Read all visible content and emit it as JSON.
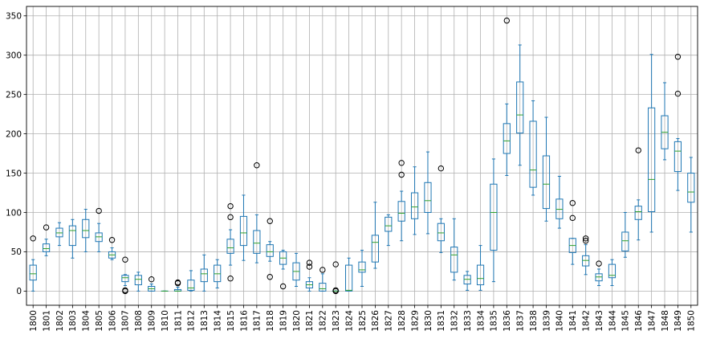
{
  "chart_data": {
    "type": "boxplot",
    "categories": [
      "1800",
      "1801",
      "1802",
      "1803",
      "1804",
      "1805",
      "1806",
      "1807",
      "1808",
      "1809",
      "1810",
      "1811",
      "1812",
      "1813",
      "1814",
      "1815",
      "1816",
      "1817",
      "1818",
      "1819",
      "1820",
      "1821",
      "1822",
      "1823",
      "1824",
      "1825",
      "1826",
      "1827",
      "1828",
      "1829",
      "1830",
      "1831",
      "1832",
      "1833",
      "1834",
      "1835",
      "1836",
      "1837",
      "1838",
      "1839",
      "1840",
      "1841",
      "1842",
      "1843",
      "1844",
      "1845",
      "1846",
      "1847",
      "1848",
      "1849",
      "1850"
    ],
    "boxes": [
      {
        "whislo": 0,
        "q1": 14,
        "med": 22,
        "q3": 33,
        "whishi": 40,
        "fliers": [
          67
        ]
      },
      {
        "whislo": 45,
        "q1": 50,
        "med": 54,
        "q3": 60,
        "whishi": 66,
        "fliers": [
          81
        ]
      },
      {
        "whislo": 58,
        "q1": 69,
        "med": 74,
        "q3": 80,
        "whishi": 87,
        "fliers": []
      },
      {
        "whislo": 42,
        "q1": 58,
        "med": 77,
        "q3": 83,
        "whishi": 91,
        "fliers": []
      },
      {
        "whislo": 50,
        "q1": 68,
        "med": 77,
        "q3": 91,
        "whishi": 104,
        "fliers": []
      },
      {
        "whislo": 50,
        "q1": 63,
        "med": 69,
        "q3": 74,
        "whishi": 86,
        "fliers": [
          102
        ]
      },
      {
        "whislo": 40,
        "q1": 42,
        "med": 46,
        "q3": 50,
        "whishi": 55,
        "fliers": [
          65
        ]
      },
      {
        "whislo": 7,
        "q1": 12,
        "med": 17,
        "q3": 20,
        "whishi": 21,
        "fliers": [
          40,
          0,
          1
        ]
      },
      {
        "whislo": 0,
        "q1": 8,
        "med": 15,
        "q3": 20,
        "whishi": 24,
        "fliers": []
      },
      {
        "whislo": 0,
        "q1": 0,
        "med": 3,
        "q3": 6,
        "whishi": 9,
        "fliers": [
          15
        ]
      },
      {
        "whislo": 0,
        "q1": 0,
        "med": 0,
        "q3": 0,
        "whishi": 0,
        "fliers": []
      },
      {
        "whislo": 0,
        "q1": 0,
        "med": 0,
        "q3": 2,
        "whishi": 5,
        "fliers": [
          11,
          10
        ]
      },
      {
        "whislo": 0,
        "q1": 1,
        "med": 4,
        "q3": 14,
        "whishi": 26,
        "fliers": []
      },
      {
        "whislo": 0,
        "q1": 12,
        "med": 22,
        "q3": 28,
        "whishi": 46,
        "fliers": []
      },
      {
        "whislo": 4,
        "q1": 12,
        "med": 22,
        "q3": 33,
        "whishi": 40,
        "fliers": []
      },
      {
        "whislo": 33,
        "q1": 48,
        "med": 55,
        "q3": 66,
        "whishi": 78,
        "fliers": [
          108,
          94,
          16
        ]
      },
      {
        "whislo": 39,
        "q1": 58,
        "med": 74,
        "q3": 95,
        "whishi": 122,
        "fliers": []
      },
      {
        "whislo": 36,
        "q1": 48,
        "med": 61,
        "q3": 77,
        "whishi": 97,
        "fliers": [
          160
        ]
      },
      {
        "whislo": 38,
        "q1": 44,
        "med": 50,
        "q3": 59,
        "whishi": 63,
        "fliers": [
          89,
          18
        ]
      },
      {
        "whislo": 28,
        "q1": 34,
        "med": 42,
        "q3": 50,
        "whishi": 52,
        "fliers": [
          6
        ]
      },
      {
        "whislo": 6,
        "q1": 14,
        "med": 25,
        "q3": 36,
        "whishi": 48,
        "fliers": []
      },
      {
        "whislo": 0,
        "q1": 4,
        "med": 8,
        "q3": 12,
        "whishi": 17,
        "fliers": [
          36,
          31
        ]
      },
      {
        "whislo": 0,
        "q1": 0,
        "med": 3,
        "q3": 10,
        "whishi": 22,
        "fliers": [
          27
        ]
      },
      {
        "whislo": 0,
        "q1": 0,
        "med": 0,
        "q3": 0,
        "whishi": 0,
        "fliers": [
          34,
          1,
          0
        ]
      },
      {
        "whislo": 0,
        "q1": 0,
        "med": 1,
        "q3": 33,
        "whishi": 42,
        "fliers": []
      },
      {
        "whislo": 6,
        "q1": 24,
        "med": 27,
        "q3": 37,
        "whishi": 52,
        "fliers": []
      },
      {
        "whislo": 29,
        "q1": 37,
        "med": 62,
        "q3": 71,
        "whishi": 113,
        "fliers": []
      },
      {
        "whislo": 58,
        "q1": 76,
        "med": 83,
        "q3": 94,
        "whishi": 97,
        "fliers": []
      },
      {
        "whislo": 64,
        "q1": 89,
        "med": 99,
        "q3": 114,
        "whishi": 127,
        "fliers": [
          163,
          148
        ]
      },
      {
        "whislo": 72,
        "q1": 92,
        "med": 107,
        "q3": 125,
        "whishi": 158,
        "fliers": []
      },
      {
        "whislo": 73,
        "q1": 100,
        "med": 115,
        "q3": 138,
        "whishi": 177,
        "fliers": []
      },
      {
        "whislo": 49,
        "q1": 64,
        "med": 74,
        "q3": 86,
        "whishi": 92,
        "fliers": [
          156
        ]
      },
      {
        "whislo": 14,
        "q1": 24,
        "med": 46,
        "q3": 56,
        "whishi": 92,
        "fliers": []
      },
      {
        "whislo": 1,
        "q1": 9,
        "med": 15,
        "q3": 20,
        "whishi": 25,
        "fliers": []
      },
      {
        "whislo": 1,
        "q1": 8,
        "med": 16,
        "q3": 33,
        "whishi": 58,
        "fliers": []
      },
      {
        "whislo": 12,
        "q1": 52,
        "med": 100,
        "q3": 136,
        "whishi": 168,
        "fliers": []
      },
      {
        "whislo": 147,
        "q1": 175,
        "med": 191,
        "q3": 213,
        "whishi": 238,
        "fliers": [
          344
        ]
      },
      {
        "whislo": 160,
        "q1": 201,
        "med": 224,
        "q3": 266,
        "whishi": 313,
        "fliers": []
      },
      {
        "whislo": 122,
        "q1": 132,
        "med": 154,
        "q3": 216,
        "whishi": 242,
        "fliers": []
      },
      {
        "whislo": 89,
        "q1": 105,
        "med": 136,
        "q3": 172,
        "whishi": 221,
        "fliers": []
      },
      {
        "whislo": 80,
        "q1": 92,
        "med": 104,
        "q3": 117,
        "whishi": 146,
        "fliers": []
      },
      {
        "whislo": 34,
        "q1": 49,
        "med": 58,
        "q3": 67,
        "whishi": 67,
        "fliers": [
          112,
          93
        ]
      },
      {
        "whislo": 21,
        "q1": 32,
        "med": 39,
        "q3": 45,
        "whishi": 59,
        "fliers": [
          67,
          64
        ]
      },
      {
        "whislo": 7,
        "q1": 13,
        "med": 18,
        "q3": 22,
        "whishi": 28,
        "fliers": [
          35
        ]
      },
      {
        "whislo": 7,
        "q1": 17,
        "med": 20,
        "q3": 34,
        "whishi": 40,
        "fliers": []
      },
      {
        "whislo": 43,
        "q1": 51,
        "med": 64,
        "q3": 75,
        "whishi": 100,
        "fliers": []
      },
      {
        "whislo": 65,
        "q1": 91,
        "med": 101,
        "q3": 108,
        "whishi": 116,
        "fliers": [
          179
        ]
      },
      {
        "whislo": 75,
        "q1": 101,
        "med": 142,
        "q3": 233,
        "whishi": 301,
        "fliers": []
      },
      {
        "whislo": 167,
        "q1": 181,
        "med": 202,
        "q3": 223,
        "whishi": 265,
        "fliers": []
      },
      {
        "whislo": 128,
        "q1": 152,
        "med": 178,
        "q3": 190,
        "whishi": 194,
        "fliers": [
          298,
          251
        ]
      },
      {
        "whislo": 75,
        "q1": 113,
        "med": 126,
        "q3": 150,
        "whishi": 170,
        "fliers": []
      }
    ],
    "yticks": [
      0,
      50,
      100,
      150,
      200,
      250,
      300,
      350
    ],
    "ylim": [
      -18,
      362
    ],
    "grid": true,
    "colors": {
      "box": "#1f77b4",
      "median": "#2ca02c",
      "flier": "#000000",
      "grid": "#b0b0b0",
      "axes": "#000000"
    }
  }
}
